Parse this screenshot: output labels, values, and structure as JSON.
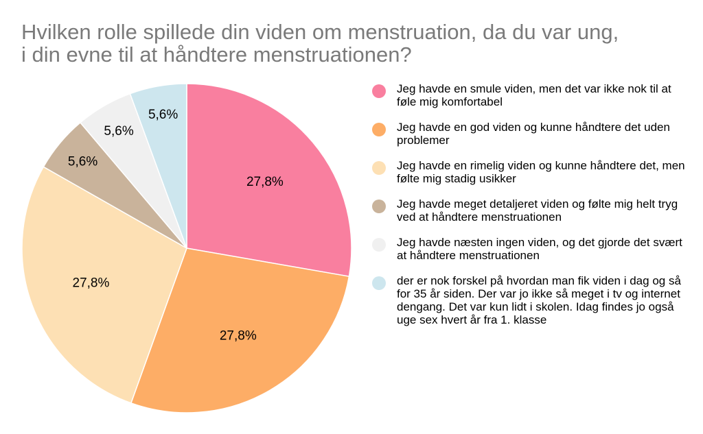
{
  "chart_data": {
    "type": "pie",
    "title": "Hvilken rolle spillede din viden om menstruation, da du var ung,\ni din evne til at håndtere menstruationen?",
    "slices": [
      {
        "label": "Jeg havde en smule viden, men det var ikke nok til at føle mig komfortabel",
        "value": 27.8,
        "display": "27,8%",
        "color": "#f97f9f"
      },
      {
        "label": "Jeg havde en god viden og kunne håndtere det uden problemer",
        "value": 27.8,
        "display": "27,8%",
        "color": "#fdad66"
      },
      {
        "label": "Jeg havde en rimelig viden og kunne håndtere det, men følte mig stadig usikker",
        "value": 27.8,
        "display": "27,8%",
        "color": "#fde0b4"
      },
      {
        "label": "Jeg havde meget detaljeret viden og følte mig helt tryg ved at håndtere menstruationen",
        "value": 5.6,
        "display": "5,6%",
        "color": "#c9b39b"
      },
      {
        "label": "Jeg havde næsten ingen viden, og det gjorde det svært at håndtere menstruationen",
        "value": 5.6,
        "display": "5,6%",
        "color": "#f0f0f0"
      },
      {
        "label": "der er nok forskel på hvordan man fik viden i dag og så for 35 år siden. Der var jo ikke så meget i tv og internet dengang. Det var kun lidt i skolen. Idag findes jo også uge sex hvert år fra 1. klasse",
        "value": 5.6,
        "display": "5,6%",
        "color": "#cde6ee"
      }
    ],
    "legend_position": "right"
  }
}
